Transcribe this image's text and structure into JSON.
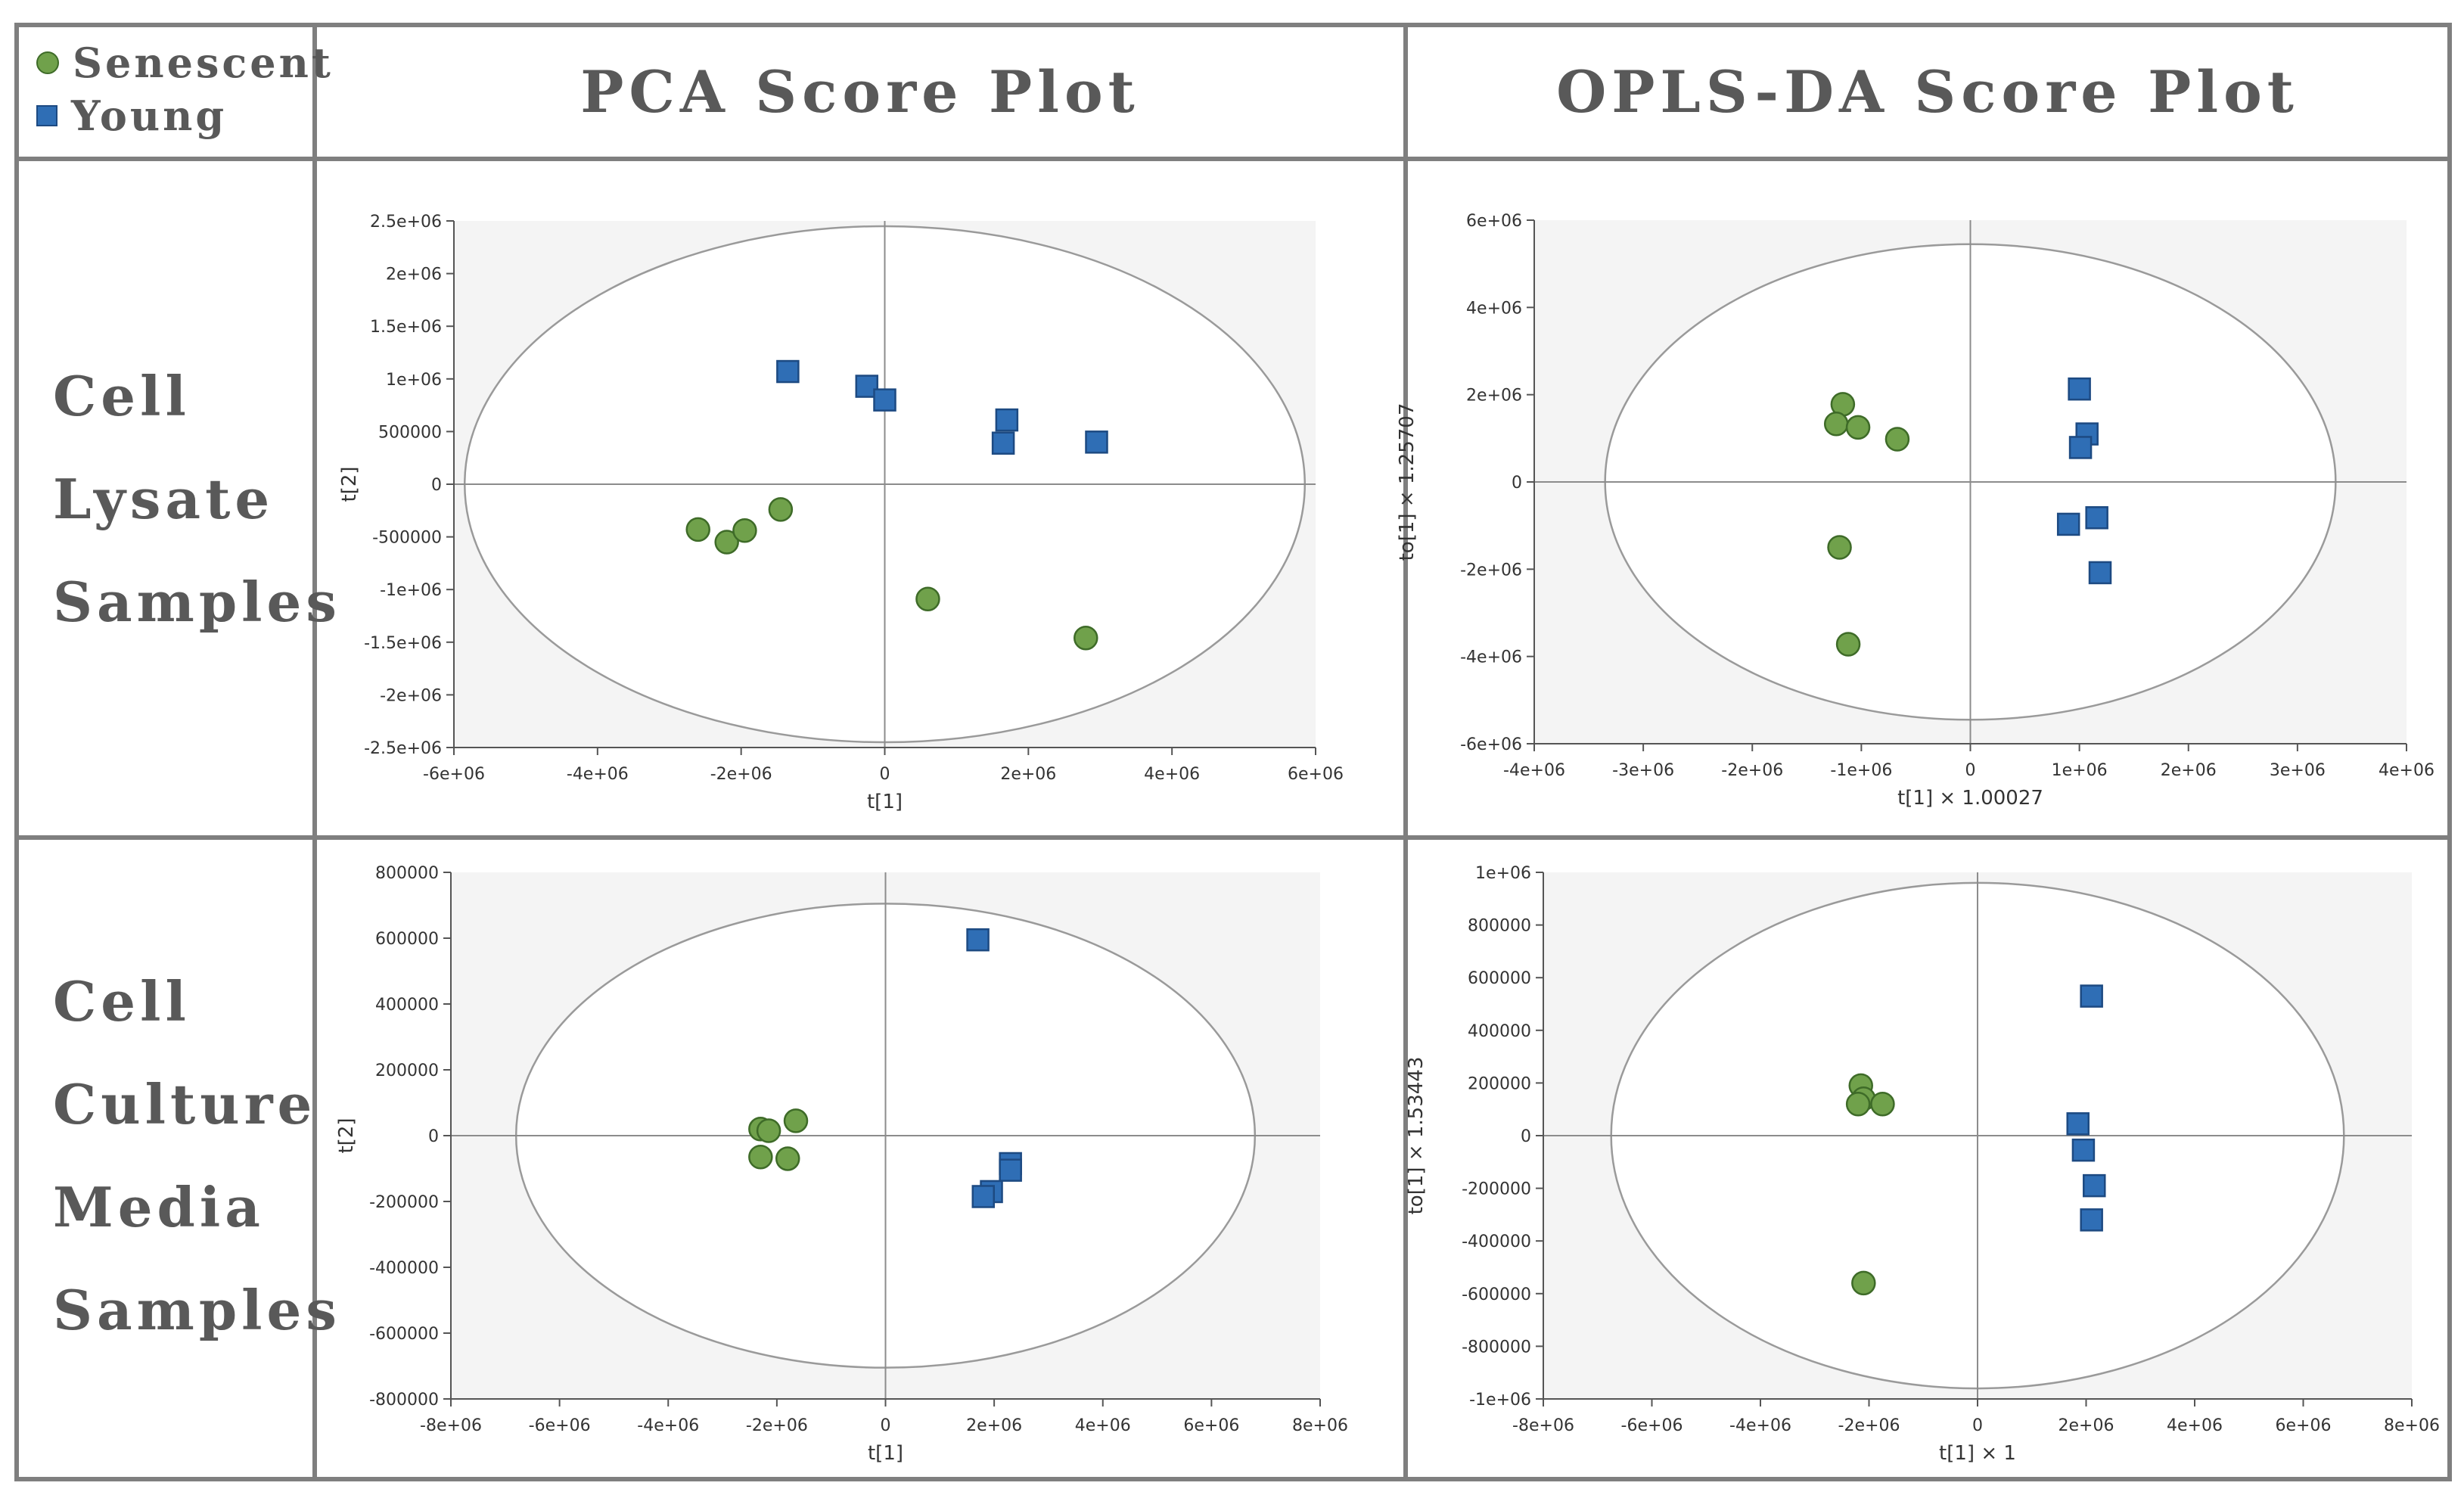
{
  "legend": {
    "items": [
      {
        "label": "Senescent",
        "shape": "circle",
        "color": "#70a14b"
      },
      {
        "label": "Young",
        "shape": "square",
        "color": "#2f6eb5"
      }
    ]
  },
  "columns": [
    "PCA Score Plot",
    "OPLS-DA Score Plot"
  ],
  "rows": [
    {
      "lines": [
        "Cell",
        "Lysate",
        "Samples"
      ]
    },
    {
      "lines": [
        "Cell",
        "Culture",
        "Media",
        "Samples"
      ]
    }
  ],
  "colors": {
    "senescent": "#70a14b",
    "senescent_edge": "#3e6b28",
    "young": "#2f6eb5",
    "young_edge": "#1d4a82",
    "plot_bg": "#f4f4f4",
    "border": "#7f7f7f"
  },
  "chart_data": [
    {
      "id": "pca-lysate",
      "type": "scatter",
      "title": "PCA Score Plot",
      "group": "Cell Lysate Samples",
      "xlabel": "t[1]",
      "ylabel": "t[2]",
      "xlim": [
        -6000000,
        6000000
      ],
      "ylim": [
        -2500000,
        2500000
      ],
      "xticks": [
        -6000000,
        -4000000,
        -2000000,
        0,
        2000000,
        4000000,
        6000000
      ],
      "xtick_labels": [
        "-6e+06",
        "-4e+06",
        "-2e+06",
        "0",
        "2e+06",
        "4e+06",
        "6e+06"
      ],
      "yticks": [
        2500000,
        2000000,
        1500000,
        1000000,
        500000,
        0,
        -500000,
        -1000000,
        -1500000,
        -2000000,
        -2500000
      ],
      "ytick_labels": [
        "2.5e+06",
        "2e+06",
        "1.5e+06",
        "1e+06",
        "500000",
        "0",
        "-500000",
        "-1e+06",
        "-1.5e+06",
        "-2e+06",
        "-2.5e+06"
      ],
      "ellipse": {
        "rx": 5850000,
        "ry": 2450000
      },
      "series": [
        {
          "name": "Senescent",
          "points": [
            [
              -2600000,
              -430000
            ],
            [
              -2200000,
              -550000
            ],
            [
              -1950000,
              -440000
            ],
            [
              -1450000,
              -240000
            ],
            [
              600000,
              -1090000
            ],
            [
              2800000,
              -1460000
            ]
          ]
        },
        {
          "name": "Young",
          "points": [
            [
              -1350000,
              1070000
            ],
            [
              -250000,
              930000
            ],
            [
              0,
              800000
            ],
            [
              1650000,
              390000
            ],
            [
              1700000,
              610000
            ],
            [
              2950000,
              400000
            ]
          ]
        }
      ]
    },
    {
      "id": "oplsda-lysate",
      "type": "scatter",
      "title": "OPLS-DA Score Plot",
      "group": "Cell Lysate Samples",
      "xlabel": "t[1] × 1.00027",
      "ylabel": "to[1] × 1.25707",
      "xlim": [
        -4000000,
        4000000
      ],
      "ylim": [
        -6000000,
        6000000
      ],
      "xticks": [
        -4000000,
        -3000000,
        -2000000,
        -1000000,
        0,
        1000000,
        2000000,
        3000000,
        4000000
      ],
      "xtick_labels": [
        "-4e+06",
        "-3e+06",
        "-2e+06",
        "-1e+06",
        "0",
        "1e+06",
        "2e+06",
        "3e+06",
        "4e+06"
      ],
      "yticks": [
        6000000,
        4000000,
        2000000,
        0,
        -2000000,
        -4000000,
        -6000000
      ],
      "ytick_labels": [
        "6e+06",
        "4e+06",
        "2e+06",
        "0",
        "-2e+06",
        "-4e+06",
        "-6e+06"
      ],
      "ellipse": {
        "rx": 3350000,
        "ry": 5450000
      },
      "series": [
        {
          "name": "Senescent",
          "points": [
            [
              -1170000,
              1780000
            ],
            [
              -1230000,
              1330000
            ],
            [
              -1030000,
              1250000
            ],
            [
              -670000,
              980000
            ],
            [
              -1200000,
              -1500000
            ],
            [
              -1120000,
              -3720000
            ]
          ]
        },
        {
          "name": "Young",
          "points": [
            [
              1000000,
              2130000
            ],
            [
              1070000,
              1100000
            ],
            [
              1010000,
              790000
            ],
            [
              900000,
              -970000
            ],
            [
              1160000,
              -820000
            ],
            [
              1190000,
              -2080000
            ]
          ]
        }
      ]
    },
    {
      "id": "pca-media",
      "type": "scatter",
      "title": "PCA Score Plot",
      "group": "Cell Culture Media Samples",
      "xlabel": "t[1]",
      "ylabel": "t[2]",
      "xlim": [
        -8000000,
        8000000
      ],
      "ylim": [
        -800000,
        800000
      ],
      "xticks": [
        -8000000,
        -6000000,
        -4000000,
        -2000000,
        0,
        2000000,
        4000000,
        6000000,
        8000000
      ],
      "xtick_labels": [
        "-8e+06",
        "-6e+06",
        "-4e+06",
        "-2e+06",
        "0",
        "2e+06",
        "4e+06",
        "6e+06",
        "8e+06"
      ],
      "yticks": [
        800000,
        600000,
        400000,
        200000,
        0,
        -200000,
        -400000,
        -600000,
        -800000
      ],
      "ytick_labels": [
        "800000",
        "600000",
        "400000",
        "200000",
        "0",
        "-200000",
        "-400000",
        "-600000",
        "-800000"
      ],
      "ellipse": {
        "rx": 6800000,
        "ry": 705000
      },
      "series": [
        {
          "name": "Senescent",
          "points": [
            [
              -2300000,
              20000
            ],
            [
              -2150000,
              15000
            ],
            [
              -1650000,
              45000
            ],
            [
              -2300000,
              -65000
            ],
            [
              -1800000,
              -70000
            ]
          ]
        },
        {
          "name": "Young",
          "points": [
            [
              1700000,
              595000
            ],
            [
              2300000,
              -85000
            ],
            [
              2300000,
              -105000
            ],
            [
              1950000,
              -170000
            ],
            [
              1800000,
              -185000
            ]
          ]
        }
      ]
    },
    {
      "id": "oplsda-media",
      "type": "scatter",
      "title": "OPLS-DA Score Plot",
      "group": "Cell Culture Media Samples",
      "xlabel": "t[1] × 1",
      "ylabel": "to[1] × 1.53443",
      "xlim": [
        -8000000,
        8000000
      ],
      "ylim": [
        -1000000,
        1000000
      ],
      "xticks": [
        -8000000,
        -6000000,
        -4000000,
        -2000000,
        0,
        2000000,
        4000000,
        6000000,
        8000000
      ],
      "xtick_labels": [
        "-8e+06",
        "-6e+06",
        "-4e+06",
        "-2e+06",
        "0",
        "2e+06",
        "4e+06",
        "6e+06",
        "8e+06"
      ],
      "yticks": [
        1000000,
        800000,
        600000,
        400000,
        200000,
        0,
        -200000,
        -400000,
        -600000,
        -800000,
        -1000000
      ],
      "ytick_labels": [
        "1e+06",
        "800000",
        "600000",
        "400000",
        "200000",
        "0",
        "-200000",
        "-400000",
        "-600000",
        "-800000",
        "-1e+06"
      ],
      "ellipse": {
        "rx": 6750000,
        "ry": 960000
      },
      "series": [
        {
          "name": "Senescent",
          "points": [
            [
              -2150000,
              190000
            ],
            [
              -2100000,
              140000
            ],
            [
              -2200000,
              120000
            ],
            [
              -1750000,
              120000
            ],
            [
              -2100000,
              -560000
            ]
          ]
        },
        {
          "name": "Young",
          "points": [
            [
              2100000,
              530000
            ],
            [
              1850000,
              45000
            ],
            [
              1950000,
              -55000
            ],
            [
              2150000,
              -190000
            ],
            [
              2100000,
              -320000
            ]
          ]
        }
      ]
    }
  ]
}
